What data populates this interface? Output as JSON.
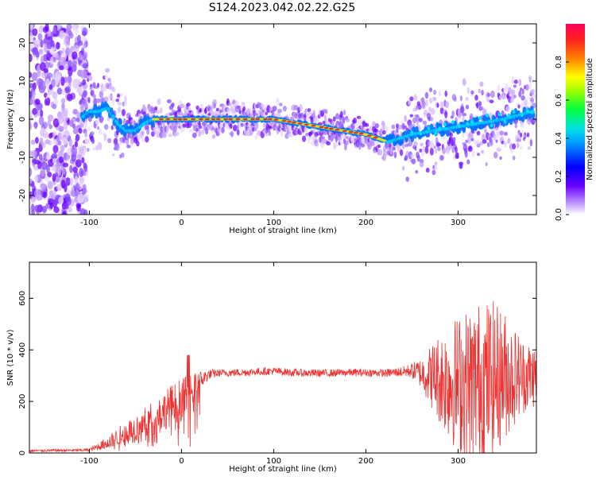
{
  "title": "S124.2023.042.02.22.G25",
  "chart_data": [
    {
      "type": "heatmap",
      "xlabel": "Height of straight line (km)",
      "ylabel": "Frequency (Hz)",
      "xlim": [
        -165,
        385
      ],
      "ylim": [
        -25,
        25
      ],
      "x_ticks": [
        -100,
        0,
        100,
        200,
        300
      ],
      "y_ticks": [
        -20,
        -10,
        0,
        10,
        20
      ],
      "colorbar": {
        "label": "Normalized spectral amplitude",
        "range": [
          0,
          1
        ],
        "ticks": [
          0.0,
          0.2,
          0.4,
          0.6,
          0.8
        ],
        "tick_labels": [
          "0.0",
          "0.2",
          "0.4",
          "0.6",
          "0.8"
        ],
        "colors": [
          "#c8a8ff",
          "#6a00ff",
          "#0000ff",
          "#00e0ff",
          "#00ff40",
          "#ffff00",
          "#ff8000",
          "#ff0040"
        ]
      },
      "ridge": {
        "x": [
          -110,
          -100,
          -90,
          -80,
          -70,
          -60,
          -50,
          -40,
          -30,
          -20,
          0,
          50,
          80,
          100,
          125,
          150,
          175,
          200,
          225,
          250,
          275,
          300,
          325,
          350,
          380
        ],
        "y": [
          0,
          2,
          2,
          3,
          -1,
          -3,
          -3,
          -1,
          0,
          0,
          0,
          0,
          0,
          0,
          -1,
          -2,
          -3,
          -4,
          -6,
          -4,
          -3,
          -2,
          -1,
          0,
          2
        ]
      }
    },
    {
      "type": "line",
      "xlabel": "Height of straight line (km)",
      "ylabel": "SNR (10 * v/v)",
      "xlim": [
        -165,
        385
      ],
      "ylim": [
        0,
        740
      ],
      "x_ticks": [
        -100,
        0,
        100,
        200,
        300
      ],
      "y_ticks": [
        0,
        200,
        400,
        600
      ],
      "line_color": "#ee3333",
      "series": [
        {
          "x": [
            -165,
            -140,
            -120,
            -100,
            -90,
            -80,
            -70,
            -60,
            -50,
            -40,
            -30,
            -20,
            -10,
            0,
            10,
            20,
            30,
            40,
            60,
            80,
            100,
            120,
            140,
            160,
            180,
            200,
            220,
            240,
            250,
            260,
            270,
            280,
            290,
            300,
            310,
            320,
            330,
            340,
            350,
            360,
            370,
            385
          ],
          "values": [
            8,
            10,
            10,
            12,
            25,
            40,
            60,
            80,
            95,
            115,
            140,
            160,
            190,
            210,
            240,
            280,
            305,
            310,
            312,
            315,
            318,
            312,
            310,
            310,
            312,
            312,
            310,
            315,
            320,
            310,
            300,
            290,
            280,
            270,
            265,
            270,
            280,
            290,
            300,
            300,
            300,
            300
          ],
          "spread": [
            5,
            5,
            5,
            6,
            15,
            25,
            35,
            45,
            55,
            60,
            70,
            75,
            80,
            85,
            60,
            40,
            20,
            15,
            15,
            15,
            15,
            15,
            15,
            15,
            15,
            15,
            15,
            20,
            30,
            60,
            120,
            180,
            230,
            270,
            300,
            320,
            320,
            300,
            260,
            200,
            150,
            120
          ]
        }
      ]
    }
  ]
}
